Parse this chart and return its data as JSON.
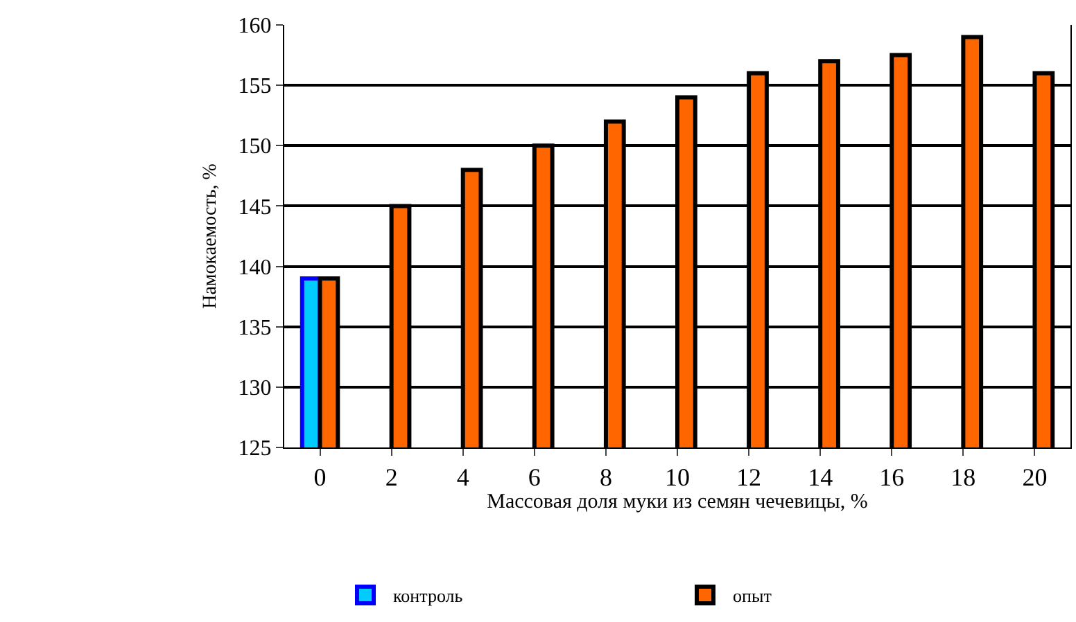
{
  "chart_data": {
    "type": "bar",
    "xlabel": "Массовая доля муки из семян чечевицы, %",
    "ylabel": "Намокаемость, %",
    "categories": [
      "0",
      "2",
      "4",
      "6",
      "8",
      "10",
      "12",
      "14",
      "16",
      "18",
      "20"
    ],
    "series": [
      {
        "name": "контроль",
        "color": "#00ccff",
        "values": [
          139,
          null,
          null,
          null,
          null,
          null,
          null,
          null,
          null,
          null,
          null
        ]
      },
      {
        "name": "опыт",
        "color": "#ff6600",
        "values": [
          139,
          145,
          148,
          150,
          152,
          154,
          156,
          157,
          157.5,
          159,
          156
        ]
      }
    ],
    "ylim": [
      125,
      160
    ],
    "yticks": [
      125,
      130,
      135,
      140,
      145,
      150,
      155,
      160
    ],
    "grid": "y",
    "legend": "bottom"
  }
}
